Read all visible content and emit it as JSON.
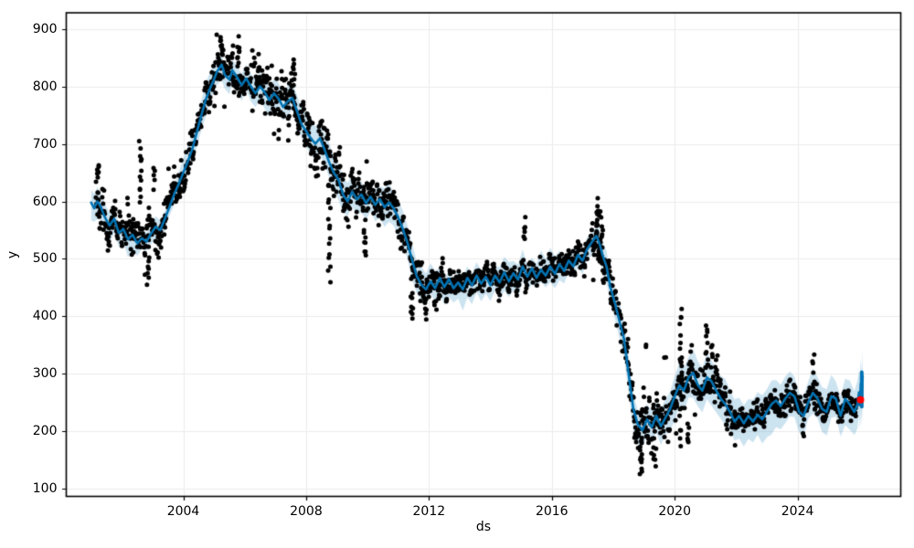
{
  "chart_data": {
    "type": "line",
    "subtype": "prophet-forecast: black observation scatter, blue yhat line, translucent blue uncertainty band, red latest forecast point",
    "title": "",
    "xlabel": "ds",
    "ylabel": "y",
    "xlim": [
      2000.19,
      2027.36
    ],
    "ylim": [
      87,
      928
    ],
    "grid": true,
    "legend_position": "none",
    "xticks": {
      "values": [
        2004,
        2008,
        2012,
        2016,
        2020,
        2024
      ],
      "labels": [
        "2004",
        "2008",
        "2012",
        "2016",
        "2020",
        "2024"
      ]
    },
    "yticks": {
      "values": [
        100,
        200,
        300,
        400,
        500,
        600,
        700,
        800,
        900
      ],
      "labels": [
        "100",
        "200",
        "300",
        "400",
        "500",
        "600",
        "700",
        "800",
        "900"
      ]
    },
    "colors": {
      "line": "#0072B2",
      "band": "rgba(0,114,178,0.2)",
      "scatter": "#000000",
      "highlight": "#ff0000",
      "grid": "#ececec",
      "spine": "#000000",
      "background": "#ffffff",
      "tick_text": "#000000"
    },
    "yhat_line": [
      [
        2001.0,
        598
      ],
      [
        2001.1,
        588
      ],
      [
        2001.2,
        600
      ],
      [
        2001.3,
        592
      ],
      [
        2001.45,
        572
      ],
      [
        2001.6,
        558
      ],
      [
        2001.75,
        570
      ],
      [
        2001.9,
        545
      ],
      [
        2002.05,
        552
      ],
      [
        2002.2,
        534
      ],
      [
        2002.35,
        542
      ],
      [
        2002.5,
        527
      ],
      [
        2002.65,
        536
      ],
      [
        2002.8,
        530
      ],
      [
        2002.95,
        544
      ],
      [
        2003.1,
        556
      ],
      [
        2003.25,
        550
      ],
      [
        2003.4,
        570
      ],
      [
        2003.55,
        590
      ],
      [
        2003.7,
        612
      ],
      [
        2003.85,
        630
      ],
      [
        2004.0,
        650
      ],
      [
        2004.15,
        670
      ],
      [
        2004.3,
        692
      ],
      [
        2004.45,
        722
      ],
      [
        2004.6,
        752
      ],
      [
        2004.75,
        780
      ],
      [
        2004.9,
        800
      ],
      [
        2005.0,
        812
      ],
      [
        2005.1,
        826
      ],
      [
        2005.25,
        838
      ],
      [
        2005.35,
        820
      ],
      [
        2005.5,
        812
      ],
      [
        2005.6,
        828
      ],
      [
        2005.75,
        816
      ],
      [
        2005.9,
        802
      ],
      [
        2006.05,
        814
      ],
      [
        2006.2,
        800
      ],
      [
        2006.35,
        788
      ],
      [
        2006.5,
        800
      ],
      [
        2006.65,
        790
      ],
      [
        2006.8,
        776
      ],
      [
        2006.95,
        788
      ],
      [
        2007.1,
        779
      ],
      [
        2007.25,
        764
      ],
      [
        2007.4,
        774
      ],
      [
        2007.55,
        780
      ],
      [
        2007.7,
        757
      ],
      [
        2007.85,
        734
      ],
      [
        2008.0,
        722
      ],
      [
        2008.15,
        710
      ],
      [
        2008.3,
        700
      ],
      [
        2008.45,
        710
      ],
      [
        2008.6,
        690
      ],
      [
        2008.75,
        668
      ],
      [
        2008.9,
        650
      ],
      [
        2009.05,
        638
      ],
      [
        2009.2,
        612
      ],
      [
        2009.35,
        600
      ],
      [
        2009.5,
        617
      ],
      [
        2009.65,
        604
      ],
      [
        2009.8,
        612
      ],
      [
        2009.95,
        597
      ],
      [
        2010.1,
        608
      ],
      [
        2010.25,
        594
      ],
      [
        2010.4,
        604
      ],
      [
        2010.55,
        590
      ],
      [
        2010.7,
        598
      ],
      [
        2010.85,
        588
      ],
      [
        2011.0,
        572
      ],
      [
        2011.15,
        552
      ],
      [
        2011.3,
        528
      ],
      [
        2011.45,
        498
      ],
      [
        2011.6,
        470
      ],
      [
        2011.75,
        455
      ],
      [
        2011.9,
        447
      ],
      [
        2012.05,
        461
      ],
      [
        2012.2,
        449
      ],
      [
        2012.35,
        467
      ],
      [
        2012.5,
        451
      ],
      [
        2012.65,
        465
      ],
      [
        2012.8,
        449
      ],
      [
        2012.95,
        459
      ],
      [
        2013.1,
        447
      ],
      [
        2013.25,
        467
      ],
      [
        2013.4,
        454
      ],
      [
        2013.55,
        471
      ],
      [
        2013.7,
        457
      ],
      [
        2013.85,
        469
      ],
      [
        2014.0,
        454
      ],
      [
        2014.15,
        471
      ],
      [
        2014.3,
        459
      ],
      [
        2014.45,
        477
      ],
      [
        2014.6,
        461
      ],
      [
        2014.75,
        475
      ],
      [
        2014.9,
        464
      ],
      [
        2015.05,
        487
      ],
      [
        2015.2,
        469
      ],
      [
        2015.35,
        484
      ],
      [
        2015.5,
        467
      ],
      [
        2015.65,
        481
      ],
      [
        2015.8,
        471
      ],
      [
        2015.95,
        487
      ],
      [
        2016.1,
        474
      ],
      [
        2016.25,
        491
      ],
      [
        2016.4,
        479
      ],
      [
        2016.55,
        497
      ],
      [
        2016.7,
        487
      ],
      [
        2016.85,
        507
      ],
      [
        2017.0,
        497
      ],
      [
        2017.15,
        517
      ],
      [
        2017.3,
        529
      ],
      [
        2017.45,
        540
      ],
      [
        2017.55,
        527
      ],
      [
        2017.65,
        507
      ],
      [
        2017.78,
        487
      ],
      [
        2017.9,
        452
      ],
      [
        2018.05,
        424
      ],
      [
        2018.2,
        392
      ],
      [
        2018.35,
        361
      ],
      [
        2018.5,
        300
      ],
      [
        2018.65,
        240
      ],
      [
        2018.8,
        212
      ],
      [
        2018.95,
        202
      ],
      [
        2019.1,
        221
      ],
      [
        2019.25,
        207
      ],
      [
        2019.4,
        227
      ],
      [
        2019.55,
        209
      ],
      [
        2019.7,
        224
      ],
      [
        2019.85,
        239
      ],
      [
        2020.0,
        261
      ],
      [
        2020.15,
        280
      ],
      [
        2020.3,
        271
      ],
      [
        2020.45,
        294
      ],
      [
        2020.6,
        302
      ],
      [
        2020.75,
        281
      ],
      [
        2020.9,
        271
      ],
      [
        2021.05,
        294
      ],
      [
        2021.2,
        287
      ],
      [
        2021.35,
        271
      ],
      [
        2021.5,
        257
      ],
      [
        2021.65,
        247
      ],
      [
        2021.8,
        234
      ],
      [
        2021.95,
        217
      ],
      [
        2022.1,
        227
      ],
      [
        2022.25,
        214
      ],
      [
        2022.4,
        227
      ],
      [
        2022.55,
        217
      ],
      [
        2022.7,
        229
      ],
      [
        2022.85,
        221
      ],
      [
        2023.0,
        234
      ],
      [
        2023.15,
        247
      ],
      [
        2023.3,
        254
      ],
      [
        2023.45,
        244
      ],
      [
        2023.6,
        257
      ],
      [
        2023.75,
        267
      ],
      [
        2023.9,
        261
      ],
      [
        2024.05,
        234
      ],
      [
        2024.2,
        227
      ],
      [
        2024.35,
        251
      ],
      [
        2024.5,
        267
      ],
      [
        2024.65,
        257
      ],
      [
        2024.8,
        239
      ],
      [
        2024.95,
        234
      ],
      [
        2025.1,
        261
      ],
      [
        2025.25,
        257
      ],
      [
        2025.4,
        227
      ],
      [
        2025.55,
        257
      ],
      [
        2025.7,
        247
      ],
      [
        2025.85,
        234
      ],
      [
        2025.95,
        247
      ],
      [
        2026.0,
        268
      ],
      [
        2026.03,
        246
      ],
      [
        2026.06,
        283
      ],
      [
        2026.09,
        255
      ],
      [
        2026.12,
        296
      ]
    ],
    "uncertainty_halfwidth": [
      [
        2001.0,
        20
      ],
      [
        2004.0,
        20
      ],
      [
        2006.0,
        24
      ],
      [
        2008.0,
        26
      ],
      [
        2010.0,
        28
      ],
      [
        2011.5,
        30
      ],
      [
        2012.5,
        26
      ],
      [
        2016.0,
        26
      ],
      [
        2017.5,
        26
      ],
      [
        2018.5,
        30
      ],
      [
        2019.5,
        30
      ],
      [
        2020.5,
        36
      ],
      [
        2021.5,
        38
      ],
      [
        2023.0,
        38
      ],
      [
        2025.0,
        40
      ],
      [
        2026.15,
        42
      ]
    ],
    "scatter_model": {
      "t_start": 2001.15,
      "t_end": 2025.95,
      "step": 0.012,
      "seed": 1337,
      "ar_rho": 0.5,
      "outlier_prob": 0.03,
      "outlier_scale": 2.2,
      "max_deviation": 70,
      "marker_radius": 2.5,
      "sigma": [
        [
          2001.0,
          22
        ],
        [
          2003.5,
          20
        ],
        [
          2004.5,
          18
        ],
        [
          2006.0,
          20
        ],
        [
          2007.5,
          22
        ],
        [
          2008.5,
          26
        ],
        [
          2009.5,
          22
        ],
        [
          2010.5,
          18
        ],
        [
          2011.5,
          16
        ],
        [
          2012.5,
          13
        ],
        [
          2016.0,
          13
        ],
        [
          2017.2,
          16
        ],
        [
          2018.0,
          16
        ],
        [
          2018.8,
          22
        ],
        [
          2019.8,
          20
        ],
        [
          2020.6,
          22
        ],
        [
          2021.5,
          16
        ],
        [
          2022.2,
          11
        ],
        [
          2024.0,
          11
        ],
        [
          2025.95,
          11
        ]
      ]
    },
    "outlier_streaks": [
      [
        2001.22,
        635,
        667,
        6
      ],
      [
        2002.6,
        600,
        700,
        12
      ],
      [
        2002.85,
        452,
        520,
        8
      ],
      [
        2003.05,
        620,
        660,
        5
      ],
      [
        2005.25,
        852,
        890,
        8
      ],
      [
        2005.8,
        848,
        886,
        6
      ],
      [
        2007.6,
        812,
        845,
        6
      ],
      [
        2008.75,
        458,
        640,
        15
      ],
      [
        2009.9,
        502,
        552,
        8
      ],
      [
        2011.45,
        396,
        440,
        8
      ],
      [
        2011.9,
        397,
        424,
        5
      ],
      [
        2012.2,
        405,
        430,
        4
      ],
      [
        2015.1,
        528,
        570,
        6
      ],
      [
        2017.5,
        548,
        605,
        12
      ],
      [
        2017.62,
        495,
        590,
        8
      ],
      [
        2018.9,
        126,
        178,
        12
      ],
      [
        2019.05,
        340,
        352,
        2
      ],
      [
        2019.35,
        140,
        178,
        6
      ],
      [
        2019.7,
        325,
        335,
        2
      ],
      [
        2020.2,
        170,
        418,
        22
      ],
      [
        2020.45,
        175,
        215,
        6
      ],
      [
        2021.05,
        328,
        388,
        7
      ],
      [
        2021.2,
        308,
        360,
        5
      ],
      [
        2024.5,
        302,
        330,
        4
      ]
    ],
    "forecast_tail": {
      "x": 2026.09,
      "from": 243,
      "to": 303,
      "stroke_width": 4
    },
    "highlight_point": {
      "x": 2026.05,
      "y": 255,
      "radius": 4,
      "color": "#ff0000"
    }
  }
}
